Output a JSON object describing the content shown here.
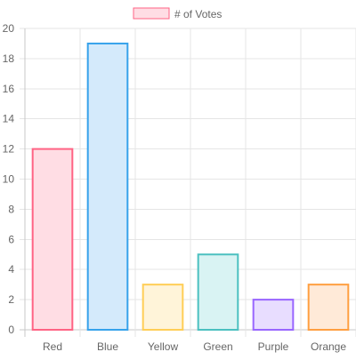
{
  "chart_data": {
    "type": "bar",
    "categories": [
      "Red",
      "Blue",
      "Yellow",
      "Green",
      "Purple",
      "Orange"
    ],
    "series": [
      {
        "name": "# of Votes",
        "values": [
          12,
          19,
          3,
          5,
          2,
          3
        ]
      }
    ],
    "ylim": [
      0,
      20
    ],
    "yticks": [
      0,
      2,
      4,
      6,
      8,
      10,
      12,
      14,
      16,
      18,
      20
    ],
    "grid": true,
    "legend_position": "top",
    "bar_fill_colors": [
      "#ffdde4",
      "#d4eafb",
      "#fff4d9",
      "#d9f3f3",
      "#e8ddff",
      "#ffead8"
    ],
    "bar_border_colors": [
      "#ff6384",
      "#36a2eb",
      "#ffce56",
      "#4bc0c0",
      "#9966ff",
      "#ff9f40"
    ],
    "legend_fill_color": "#ffdde4",
    "legend_border_color": "#ff6384",
    "gridline_color": "#e5e5e5",
    "axis_line_color": "#c8c8c8",
    "tick_label_color": "#666666"
  }
}
